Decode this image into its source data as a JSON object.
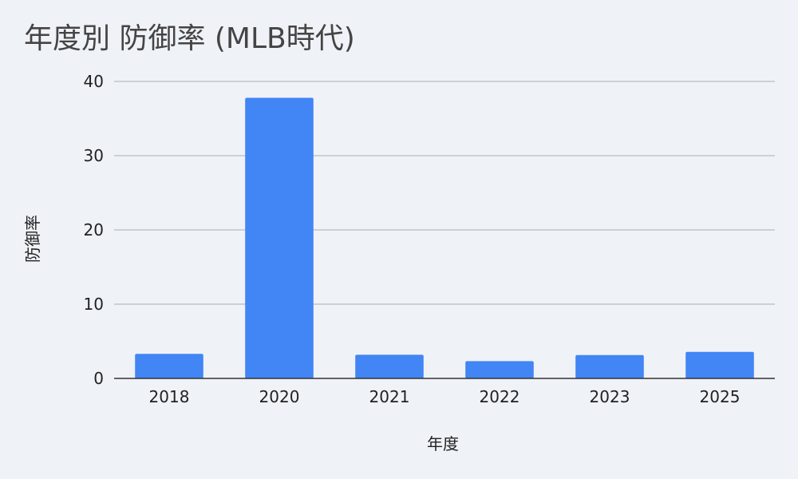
{
  "chart_data": {
    "type": "bar",
    "title": "年度別 防御率 (MLB時代)",
    "xlabel": "年度",
    "ylabel": "防御率",
    "categories": [
      "2018",
      "2020",
      "2021",
      "2022",
      "2023",
      "2025"
    ],
    "series": [
      {
        "values": [
          3.31,
          37.8,
          3.18,
          2.33,
          3.14,
          3.58
        ]
      }
    ],
    "ylim": [
      0,
      40
    ],
    "yticks": [
      0,
      10,
      20,
      30,
      40
    ],
    "grid": true,
    "legend": "none",
    "bar_color": "#4285f4"
  }
}
